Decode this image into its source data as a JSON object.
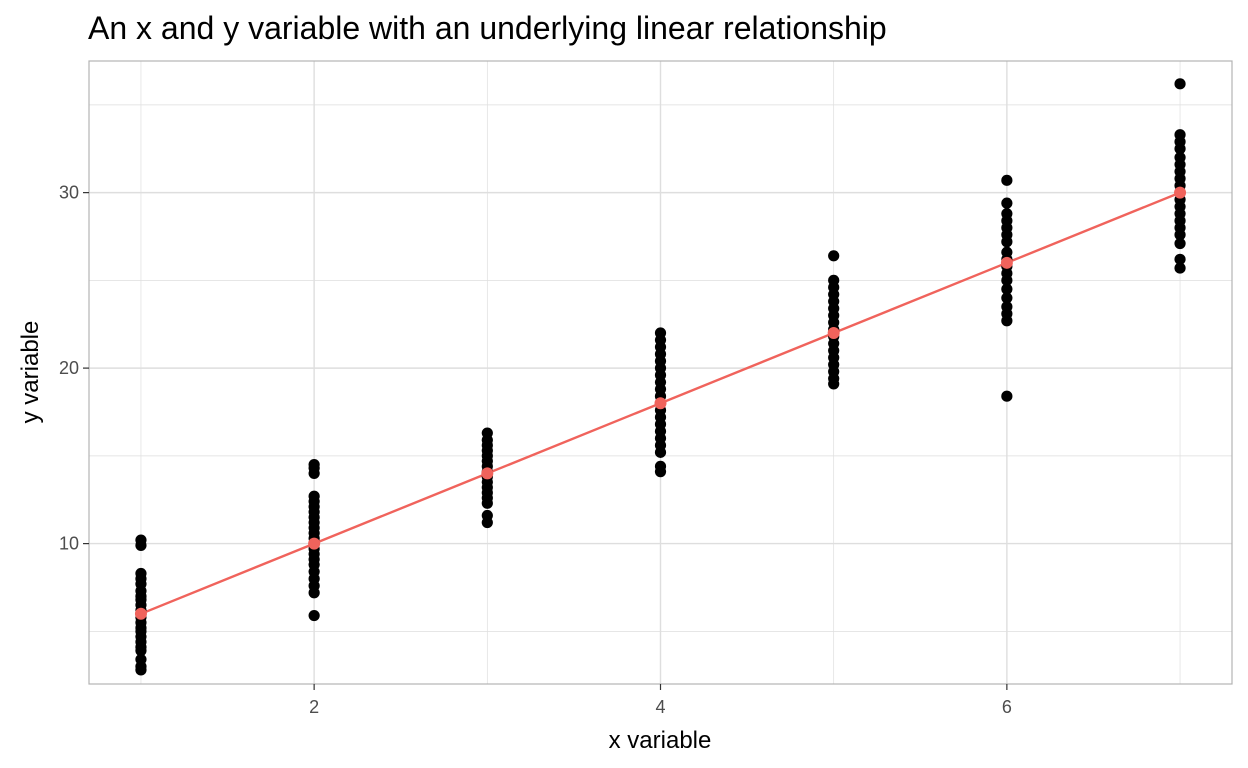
{
  "chart_data": {
    "type": "scatter",
    "title": "An x and y variable with an underlying linear relationship",
    "xlabel": "x variable",
    "ylabel": "y variable",
    "xlim": [
      0.7,
      7.3
    ],
    "ylim": [
      2.0,
      37.5
    ],
    "x_ticks": [
      2,
      4,
      6
    ],
    "y_ticks": [
      10,
      20,
      30
    ],
    "x_tick_labels": [
      "2",
      "4",
      "6"
    ],
    "y_tick_labels": [
      "10",
      "20",
      "30"
    ],
    "grid": true,
    "legend": "none",
    "colors": {
      "points": "#000000",
      "line": "#F0635C",
      "grid": "#dedede",
      "panel_border": "#b3b3b3"
    },
    "series": [
      {
        "type": "scatter",
        "points": [
          {
            "x": 1,
            "y": 10.2
          },
          {
            "x": 1,
            "y": 9.9
          },
          {
            "x": 1,
            "y": 8.3
          },
          {
            "x": 1,
            "y": 8.0
          },
          {
            "x": 1,
            "y": 7.7
          },
          {
            "x": 1,
            "y": 7.3
          },
          {
            "x": 1,
            "y": 7.0
          },
          {
            "x": 1,
            "y": 6.8
          },
          {
            "x": 1,
            "y": 6.5
          },
          {
            "x": 1,
            "y": 6.2
          },
          {
            "x": 1,
            "y": 6.0
          },
          {
            "x": 1,
            "y": 5.8
          },
          {
            "x": 1,
            "y": 5.5
          },
          {
            "x": 1,
            "y": 5.2
          },
          {
            "x": 1,
            "y": 5.0
          },
          {
            "x": 1,
            "y": 4.7
          },
          {
            "x": 1,
            "y": 4.4
          },
          {
            "x": 1,
            "y": 4.1
          },
          {
            "x": 1,
            "y": 3.9
          },
          {
            "x": 1,
            "y": 3.4
          },
          {
            "x": 1,
            "y": 3.0
          },
          {
            "x": 1,
            "y": 2.8
          },
          {
            "x": 2,
            "y": 14.5
          },
          {
            "x": 2,
            "y": 14.3
          },
          {
            "x": 2,
            "y": 14.0
          },
          {
            "x": 2,
            "y": 12.7
          },
          {
            "x": 2,
            "y": 12.4
          },
          {
            "x": 2,
            "y": 12.1
          },
          {
            "x": 2,
            "y": 11.8
          },
          {
            "x": 2,
            "y": 11.5
          },
          {
            "x": 2,
            "y": 11.2
          },
          {
            "x": 2,
            "y": 10.9
          },
          {
            "x": 2,
            "y": 10.6
          },
          {
            "x": 2,
            "y": 10.3
          },
          {
            "x": 2,
            "y": 10.0
          },
          {
            "x": 2,
            "y": 9.7
          },
          {
            "x": 2,
            "y": 9.4
          },
          {
            "x": 2,
            "y": 9.1
          },
          {
            "x": 2,
            "y": 8.8
          },
          {
            "x": 2,
            "y": 8.4
          },
          {
            "x": 2,
            "y": 8.0
          },
          {
            "x": 2,
            "y": 7.6
          },
          {
            "x": 2,
            "y": 7.2
          },
          {
            "x": 2,
            "y": 5.9
          },
          {
            "x": 3,
            "y": 16.3
          },
          {
            "x": 3,
            "y": 15.9
          },
          {
            "x": 3,
            "y": 15.6
          },
          {
            "x": 3,
            "y": 15.3
          },
          {
            "x": 3,
            "y": 15.0
          },
          {
            "x": 3,
            "y": 14.7
          },
          {
            "x": 3,
            "y": 14.4
          },
          {
            "x": 3,
            "y": 14.1
          },
          {
            "x": 3,
            "y": 13.8
          },
          {
            "x": 3,
            "y": 13.5
          },
          {
            "x": 3,
            "y": 13.2
          },
          {
            "x": 3,
            "y": 12.9
          },
          {
            "x": 3,
            "y": 12.6
          },
          {
            "x": 3,
            "y": 12.3
          },
          {
            "x": 3,
            "y": 11.6
          },
          {
            "x": 3,
            "y": 11.2
          },
          {
            "x": 4,
            "y": 22.0
          },
          {
            "x": 4,
            "y": 21.6
          },
          {
            "x": 4,
            "y": 21.2
          },
          {
            "x": 4,
            "y": 20.8
          },
          {
            "x": 4,
            "y": 20.4
          },
          {
            "x": 4,
            "y": 20.0
          },
          {
            "x": 4,
            "y": 19.6
          },
          {
            "x": 4,
            "y": 19.2
          },
          {
            "x": 4,
            "y": 18.8
          },
          {
            "x": 4,
            "y": 18.4
          },
          {
            "x": 4,
            "y": 18.0
          },
          {
            "x": 4,
            "y": 17.6
          },
          {
            "x": 4,
            "y": 17.2
          },
          {
            "x": 4,
            "y": 16.8
          },
          {
            "x": 4,
            "y": 16.4
          },
          {
            "x": 4,
            "y": 16.0
          },
          {
            "x": 4,
            "y": 15.6
          },
          {
            "x": 4,
            "y": 15.2
          },
          {
            "x": 4,
            "y": 14.4
          },
          {
            "x": 4,
            "y": 14.1
          },
          {
            "x": 5,
            "y": 26.4
          },
          {
            "x": 5,
            "y": 25.0
          },
          {
            "x": 5,
            "y": 24.6
          },
          {
            "x": 5,
            "y": 24.2
          },
          {
            "x": 5,
            "y": 23.8
          },
          {
            "x": 5,
            "y": 23.4
          },
          {
            "x": 5,
            "y": 23.0
          },
          {
            "x": 5,
            "y": 22.6
          },
          {
            "x": 5,
            "y": 22.2
          },
          {
            "x": 5,
            "y": 21.8
          },
          {
            "x": 5,
            "y": 21.4
          },
          {
            "x": 5,
            "y": 21.0
          },
          {
            "x": 5,
            "y": 20.6
          },
          {
            "x": 5,
            "y": 20.2
          },
          {
            "x": 5,
            "y": 19.8
          },
          {
            "x": 5,
            "y": 19.4
          },
          {
            "x": 5,
            "y": 19.1
          },
          {
            "x": 6,
            "y": 30.7
          },
          {
            "x": 6,
            "y": 29.4
          },
          {
            "x": 6,
            "y": 28.8
          },
          {
            "x": 6,
            "y": 28.4
          },
          {
            "x": 6,
            "y": 28.0
          },
          {
            "x": 6,
            "y": 27.6
          },
          {
            "x": 6,
            "y": 27.2
          },
          {
            "x": 6,
            "y": 26.6
          },
          {
            "x": 6,
            "y": 26.2
          },
          {
            "x": 6,
            "y": 25.8
          },
          {
            "x": 6,
            "y": 25.4
          },
          {
            "x": 6,
            "y": 25.0
          },
          {
            "x": 6,
            "y": 24.5
          },
          {
            "x": 6,
            "y": 24.0
          },
          {
            "x": 6,
            "y": 23.5
          },
          {
            "x": 6,
            "y": 23.1
          },
          {
            "x": 6,
            "y": 22.7
          },
          {
            "x": 6,
            "y": 18.4
          },
          {
            "x": 7,
            "y": 36.2
          },
          {
            "x": 7,
            "y": 33.3
          },
          {
            "x": 7,
            "y": 32.9
          },
          {
            "x": 7,
            "y": 32.5
          },
          {
            "x": 7,
            "y": 32.0
          },
          {
            "x": 7,
            "y": 31.6
          },
          {
            "x": 7,
            "y": 31.2
          },
          {
            "x": 7,
            "y": 30.8
          },
          {
            "x": 7,
            "y": 30.4
          },
          {
            "x": 7,
            "y": 30.0
          },
          {
            "x": 7,
            "y": 29.6
          },
          {
            "x": 7,
            "y": 29.2
          },
          {
            "x": 7,
            "y": 28.8
          },
          {
            "x": 7,
            "y": 28.4
          },
          {
            "x": 7,
            "y": 28.0
          },
          {
            "x": 7,
            "y": 27.6
          },
          {
            "x": 7,
            "y": 27.1
          },
          {
            "x": 7,
            "y": 26.2
          },
          {
            "x": 7,
            "y": 25.7
          }
        ]
      },
      {
        "type": "line",
        "x": [
          1,
          2,
          3,
          4,
          5,
          6,
          7
        ],
        "y": [
          6,
          10,
          14,
          18,
          22,
          26,
          30
        ],
        "markers": true
      }
    ]
  }
}
